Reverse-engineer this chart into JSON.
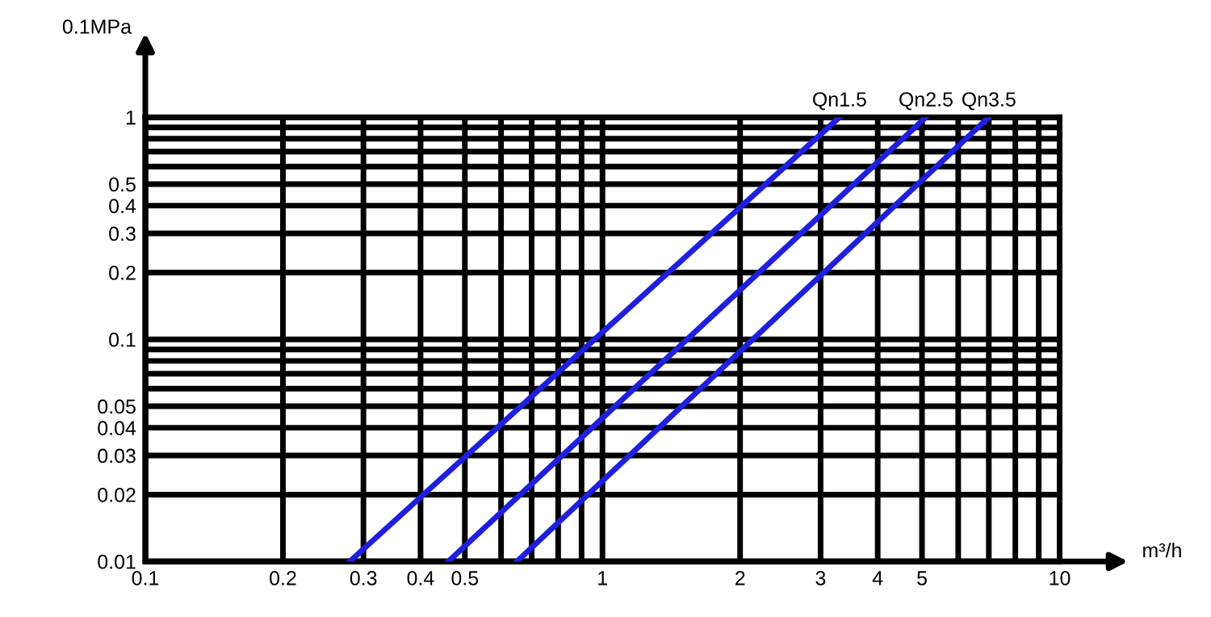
{
  "chart_data": {
    "type": "line",
    "xlabel": "m³/h",
    "ylabel": "0.1MPa",
    "log": "xy",
    "xlim": [
      0.1,
      10
    ],
    "ylim": [
      0.01,
      1
    ],
    "xticks": [
      0.1,
      0.2,
      0.3,
      0.4,
      0.5,
      {
        "value": 0.6,
        "label": null
      },
      {
        "value": 0.7,
        "label": null
      },
      {
        "value": 0.8,
        "label": null
      },
      {
        "value": 0.9,
        "label": null
      },
      1,
      2,
      3,
      4,
      5,
      {
        "value": 6,
        "label": null
      },
      {
        "value": 7,
        "label": null
      },
      {
        "value": 8,
        "label": null
      },
      {
        "value": 9,
        "label": null
      },
      10
    ],
    "yticks": [
      0.01,
      0.02,
      0.03,
      0.04,
      0.05,
      {
        "value": 0.06,
        "label": null
      },
      {
        "value": 0.07,
        "label": null
      },
      {
        "value": 0.08,
        "label": null
      },
      {
        "value": 0.09,
        "label": null
      },
      0.1,
      0.2,
      0.3,
      0.4,
      0.5,
      {
        "value": 0.6,
        "label": null
      },
      {
        "value": 0.7,
        "label": null
      },
      {
        "value": 0.8,
        "label": null
      },
      {
        "value": 0.9,
        "label": null
      },
      1
    ],
    "grid": true,
    "line_style": "solid",
    "marker": "none",
    "series": [
      {
        "name": "Qn1.5",
        "color": "#1f1fe0",
        "x": [
          0.28,
          3.3
        ],
        "values": [
          0.01,
          1
        ]
      },
      {
        "name": "Qn2.5",
        "color": "#1f1fe0",
        "x": [
          0.46,
          5.1
        ],
        "values": [
          0.01,
          1
        ]
      },
      {
        "name": "Qn3.5",
        "color": "#1f1fe0",
        "x": [
          0.65,
          7
        ],
        "values": [
          0.01,
          1
        ]
      }
    ]
  }
}
